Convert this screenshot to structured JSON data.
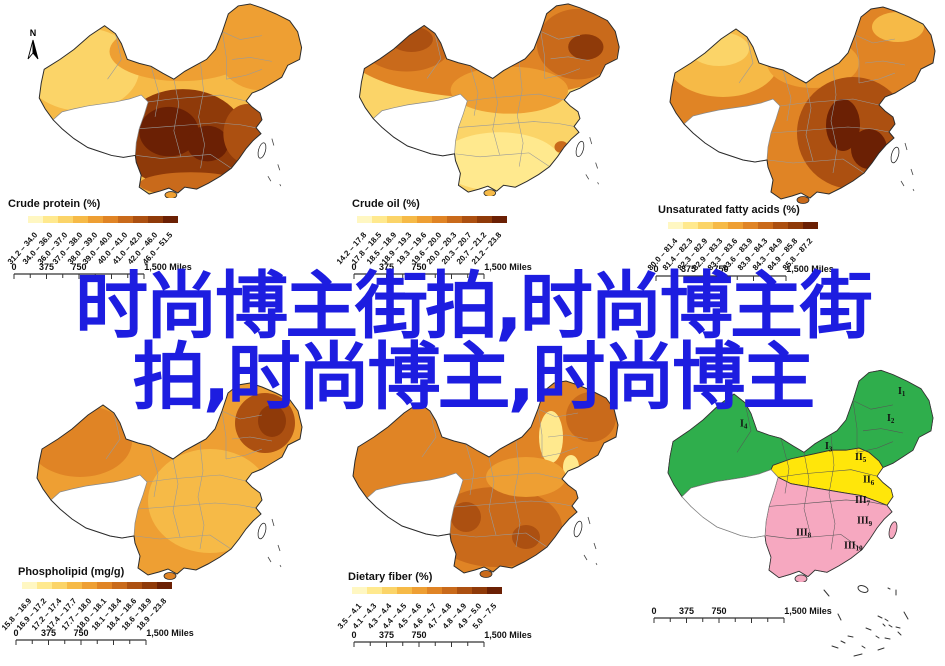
{
  "watermark": {
    "line1": "时尚博主街拍,时尚博主街",
    "line2": "拍,时尚博主,时尚博主",
    "color": "#1d1de0"
  },
  "north_arrow": {
    "label": "N"
  },
  "scalebar": {
    "zero": "0",
    "quarter": "375",
    "half": "750",
    "full": "1,500 Miles"
  },
  "legend_ramp_colors": [
    "#fff7c2",
    "#ffe98e",
    "#fbd468",
    "#f6ba47",
    "#ee9f33",
    "#e08425",
    "#c96a1b",
    "#ac5011",
    "#8f3a09",
    "#6b2004"
  ],
  "panels": [
    {
      "id": "crude-protein",
      "title": "Crude protein (%)",
      "classes": [
        "31.2 – 34.0",
        "34.0 – 36.0",
        "36.0 – 37.0",
        "37.0 – 38.0",
        "38.0 – 39.0",
        "39.0 – 40.0",
        "40.0 – 41.0",
        "41.0 – 42.0",
        "42.0 – 46.0",
        "46.0 – 51.5"
      ]
    },
    {
      "id": "crude-oil",
      "title": "Crude oil (%)",
      "classes": [
        "14.2 – 17.8",
        "17.8 – 18.5",
        "18.5 – 18.9",
        "18.9 – 19.3",
        "19.3 – 19.6",
        "19.6 – 20.0",
        "20.0 – 20.3",
        "20.3 – 20.7",
        "20.7 – 21.2",
        "21.2 – 23.8"
      ]
    },
    {
      "id": "unsaturated-fatty-acids",
      "title": "Unsaturated fatty acids (%)",
      "classes": [
        "80.0 – 81.4",
        "81.4 – 82.3",
        "82.3 – 82.9",
        "82.9 – 83.3",
        "83.3 – 83.6",
        "83.6 – 83.9",
        "83.9 – 84.3",
        "84.3 – 84.9",
        "84.9 – 85.8",
        "85.8 – 87.2"
      ]
    },
    {
      "id": "phospholipid",
      "title": "Phospholipid (mg/g)",
      "classes": [
        "15.8 – 16.9",
        "16.9 – 17.2",
        "17.2 – 17.4",
        "17.4 – 17.7",
        "17.7 – 18.0",
        "18.0 – 18.1",
        "18.1 – 18.4",
        "18.4 – 18.6",
        "18.6 – 18.9",
        "18.9 – 23.8"
      ]
    },
    {
      "id": "dietary-fiber",
      "title": "Dietary fiber (%)",
      "classes": [
        "3.5 – 4.1",
        "4.1 – 4.3",
        "4.3 – 4.4",
        "4.4 – 4.5",
        "4.5 – 4.6",
        "4.6 – 4.7",
        "4.7 – 4.8",
        "4.8 – 4.9",
        "4.9 – 5.0",
        "5.0 – 7.5"
      ]
    }
  ],
  "region_map": {
    "colors": {
      "green": "#2fae4c",
      "yellow": "#ffe60a",
      "pink": "#f6a8c0",
      "white": "#ffffff"
    },
    "labels": [
      {
        "main": "I",
        "sub": "4"
      },
      {
        "main": "I",
        "sub": "3"
      },
      {
        "main": "I",
        "sub": "1"
      },
      {
        "main": "I",
        "sub": "2"
      },
      {
        "main": "II",
        "sub": "5"
      },
      {
        "main": "II",
        "sub": "6"
      },
      {
        "main": "III",
        "sub": "7"
      },
      {
        "main": "III",
        "sub": "9"
      },
      {
        "main": "III",
        "sub": "8"
      },
      {
        "main": "III",
        "sub": "10"
      }
    ]
  }
}
